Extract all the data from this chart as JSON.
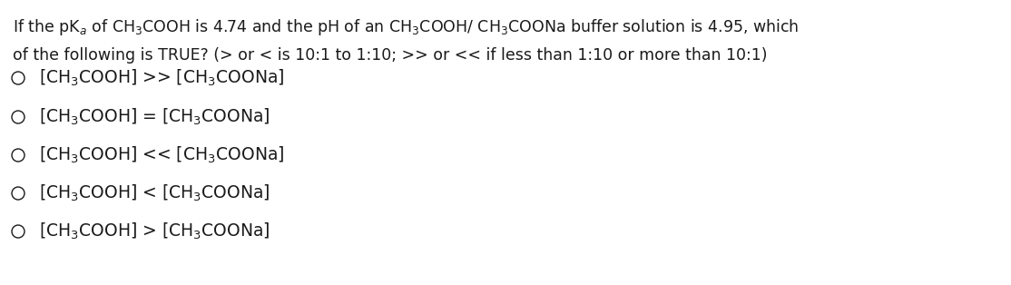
{
  "background_color": "#ffffff",
  "title_line1": "If the pK$_a$ of CH$_3$COOH is 4.74 and the pH of an CH$_3$COOH/ CH$_3$COONa buffer solution is 4.95, which",
  "title_line2": "of the following is TRUE? (> or < is 10:1 to 1:10; >> or << if less than 1:10 or more than 10:1)",
  "options": [
    "[CH$_3$COOH] >> [CH$_3$COONa]",
    "[CH$_3$COOH] = [CH$_3$COONa]",
    "[CH$_3$COOH] << [CH$_3$COONa]",
    "[CH$_3$COOH] < [CH$_3$COONa]",
    "[CH$_3$COOH] > [CH$_3$COONa]"
  ],
  "font_size_title": 12.5,
  "font_size_options": 13.5,
  "text_color": "#1a1a1a",
  "font_family": "DejaVu Sans"
}
